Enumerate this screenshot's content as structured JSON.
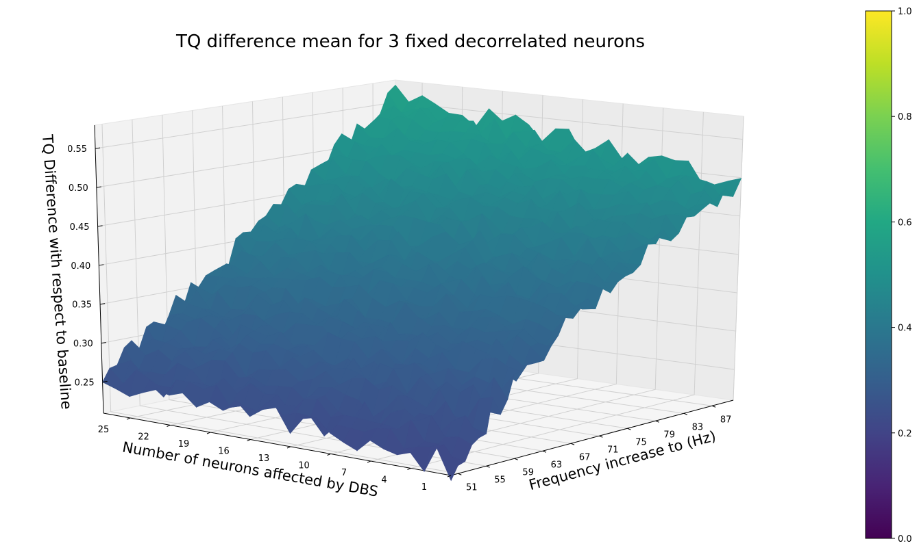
{
  "chart_data": {
    "type": "surface3d",
    "title": "TQ difference mean for 3 fixed decorrelated neurons",
    "xlabel": "Number of neurons affected by DBS",
    "ylabel": "Frequency increase to (Hz)",
    "zlabel": "TQ Difference with respect to baseline",
    "x_ticks": [
      "25",
      "22",
      "19",
      "16",
      "13",
      "10",
      "7",
      "4",
      "1"
    ],
    "y_ticks": [
      "51",
      "55",
      "59",
      "63",
      "67",
      "71",
      "75",
      "79",
      "83",
      "87"
    ],
    "z_ticks": [
      "0.25",
      "0.30",
      "0.35",
      "0.40",
      "0.45",
      "0.50",
      "0.55"
    ],
    "x_range": [
      1,
      27
    ],
    "y_range": [
      50,
      90
    ],
    "z_range": [
      0.21,
      0.58
    ],
    "colormap": "viridis",
    "colorbar_range": [
      0.0,
      1.0
    ],
    "colorbar_ticks": [
      "0.0",
      "0.2",
      "0.4",
      "0.6",
      "0.8",
      "1.0"
    ],
    "surface_trend": {
      "z_at_x1_y51": 0.22,
      "z_at_x27_y51": 0.25,
      "z_at_x1_y90": 0.49,
      "z_at_x27_y90": 0.56,
      "noise_amplitude": 0.015
    },
    "grid": true
  }
}
